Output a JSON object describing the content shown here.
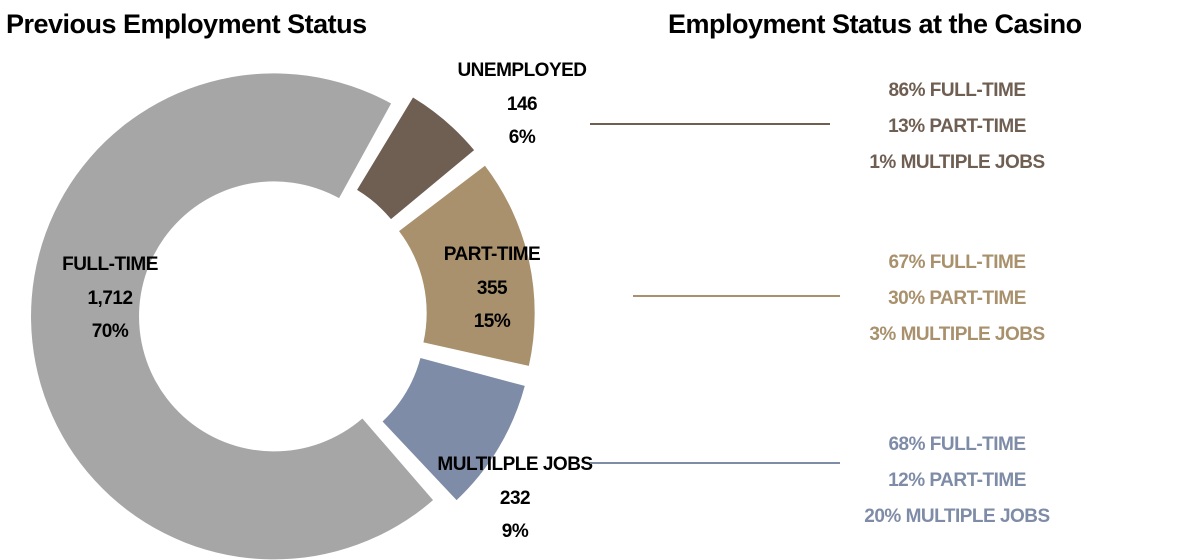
{
  "chart_data": {
    "type": "donut",
    "title": "Previous Employment Status",
    "categories": [
      "UNEMPLOYED",
      "PART-TIME",
      "MULTILPLE JOBS",
      "FULL-TIME"
    ],
    "values": [
      146,
      355,
      232,
      1712
    ],
    "value_labels": [
      "146",
      "355",
      "232",
      "1,712"
    ],
    "percents": [
      6,
      15,
      9,
      70
    ],
    "percent_labels": [
      "6%",
      "15%",
      "9%",
      "70%"
    ],
    "colors": [
      "#6f5e52",
      "#a8916c",
      "#7f8ca7",
      "#a6a6a6"
    ],
    "side_title": "Employment Status at the Casino",
    "side_groups": [
      {
        "category": "UNEMPLOYED",
        "lines": [
          "86% FULL-TIME",
          "13% PART-TIME",
          "1% MULTIPLE JOBS"
        ]
      },
      {
        "category": "PART-TIME",
        "lines": [
          "67% FULL-TIME",
          "30% PART-TIME",
          "3% MULTIPLE JOBS"
        ]
      },
      {
        "category": "MULTILPLE JOBS",
        "lines": [
          "68% FULL-TIME",
          "12% PART-TIME",
          "20% MULTIPLE JOBS"
        ]
      }
    ]
  }
}
